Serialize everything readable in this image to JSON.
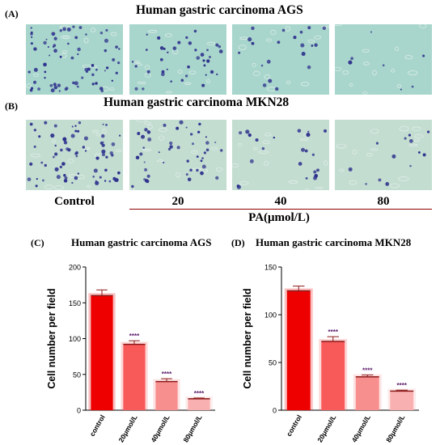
{
  "figure": {
    "panel_A": "(A)",
    "panel_B": "(B)",
    "panel_C": "(C)",
    "panel_D": "(D)",
    "title_A": "Human gastric carcinoma AGS",
    "title_B": "Human gastric carcinoma MKN28",
    "conc_labels": [
      "Control",
      "20",
      "40",
      "80"
    ],
    "axis_title": "PA(μmol/L)"
  },
  "micrographs": {
    "ags_bg": "#a9d6cc",
    "mkn_bg": "#c3ddd1",
    "cell_color": "#2c2f8c",
    "ags_densities": [
      1.0,
      0.55,
      0.3,
      0.1
    ],
    "mkn_densities": [
      1.0,
      0.65,
      0.32,
      0.18
    ]
  },
  "chart_data": [
    {
      "type": "bar",
      "title": "Human gastric carcinoma AGS",
      "ylabel": "Cell number per field",
      "categories": [
        "control",
        "20μmol/L",
        "40μmol/L",
        "80μmol/L"
      ],
      "values": [
        160,
        92,
        40,
        16
      ],
      "errors": [
        8,
        5,
        4,
        1
      ],
      "significance": [
        "",
        "****",
        "****",
        "****"
      ],
      "ylim": [
        0,
        200
      ],
      "yticks": [
        "0",
        "50",
        "100",
        "150",
        "200"
      ],
      "colors": [
        "#ee0000",
        "#f85a5a",
        "#f88f8f",
        "#f8b0b0"
      ],
      "grid": false
    },
    {
      "type": "bar",
      "title": "Human gastric carcinoma MKN28",
      "ylabel": "Cell number per field",
      "categories": [
        "control",
        "20μmol/L",
        "40μmol/L",
        "80μmol/L"
      ],
      "values": [
        125,
        72,
        35,
        20
      ],
      "errors": [
        5,
        5,
        2,
        1
      ],
      "significance": [
        "",
        "****",
        "****",
        "****"
      ],
      "ylim": [
        0,
        150
      ],
      "yticks": [
        "0",
        "50",
        "100",
        "150"
      ],
      "colors": [
        "#ee0000",
        "#f85a5a",
        "#f88f8f",
        "#f8b0b0"
      ],
      "grid": false
    }
  ]
}
